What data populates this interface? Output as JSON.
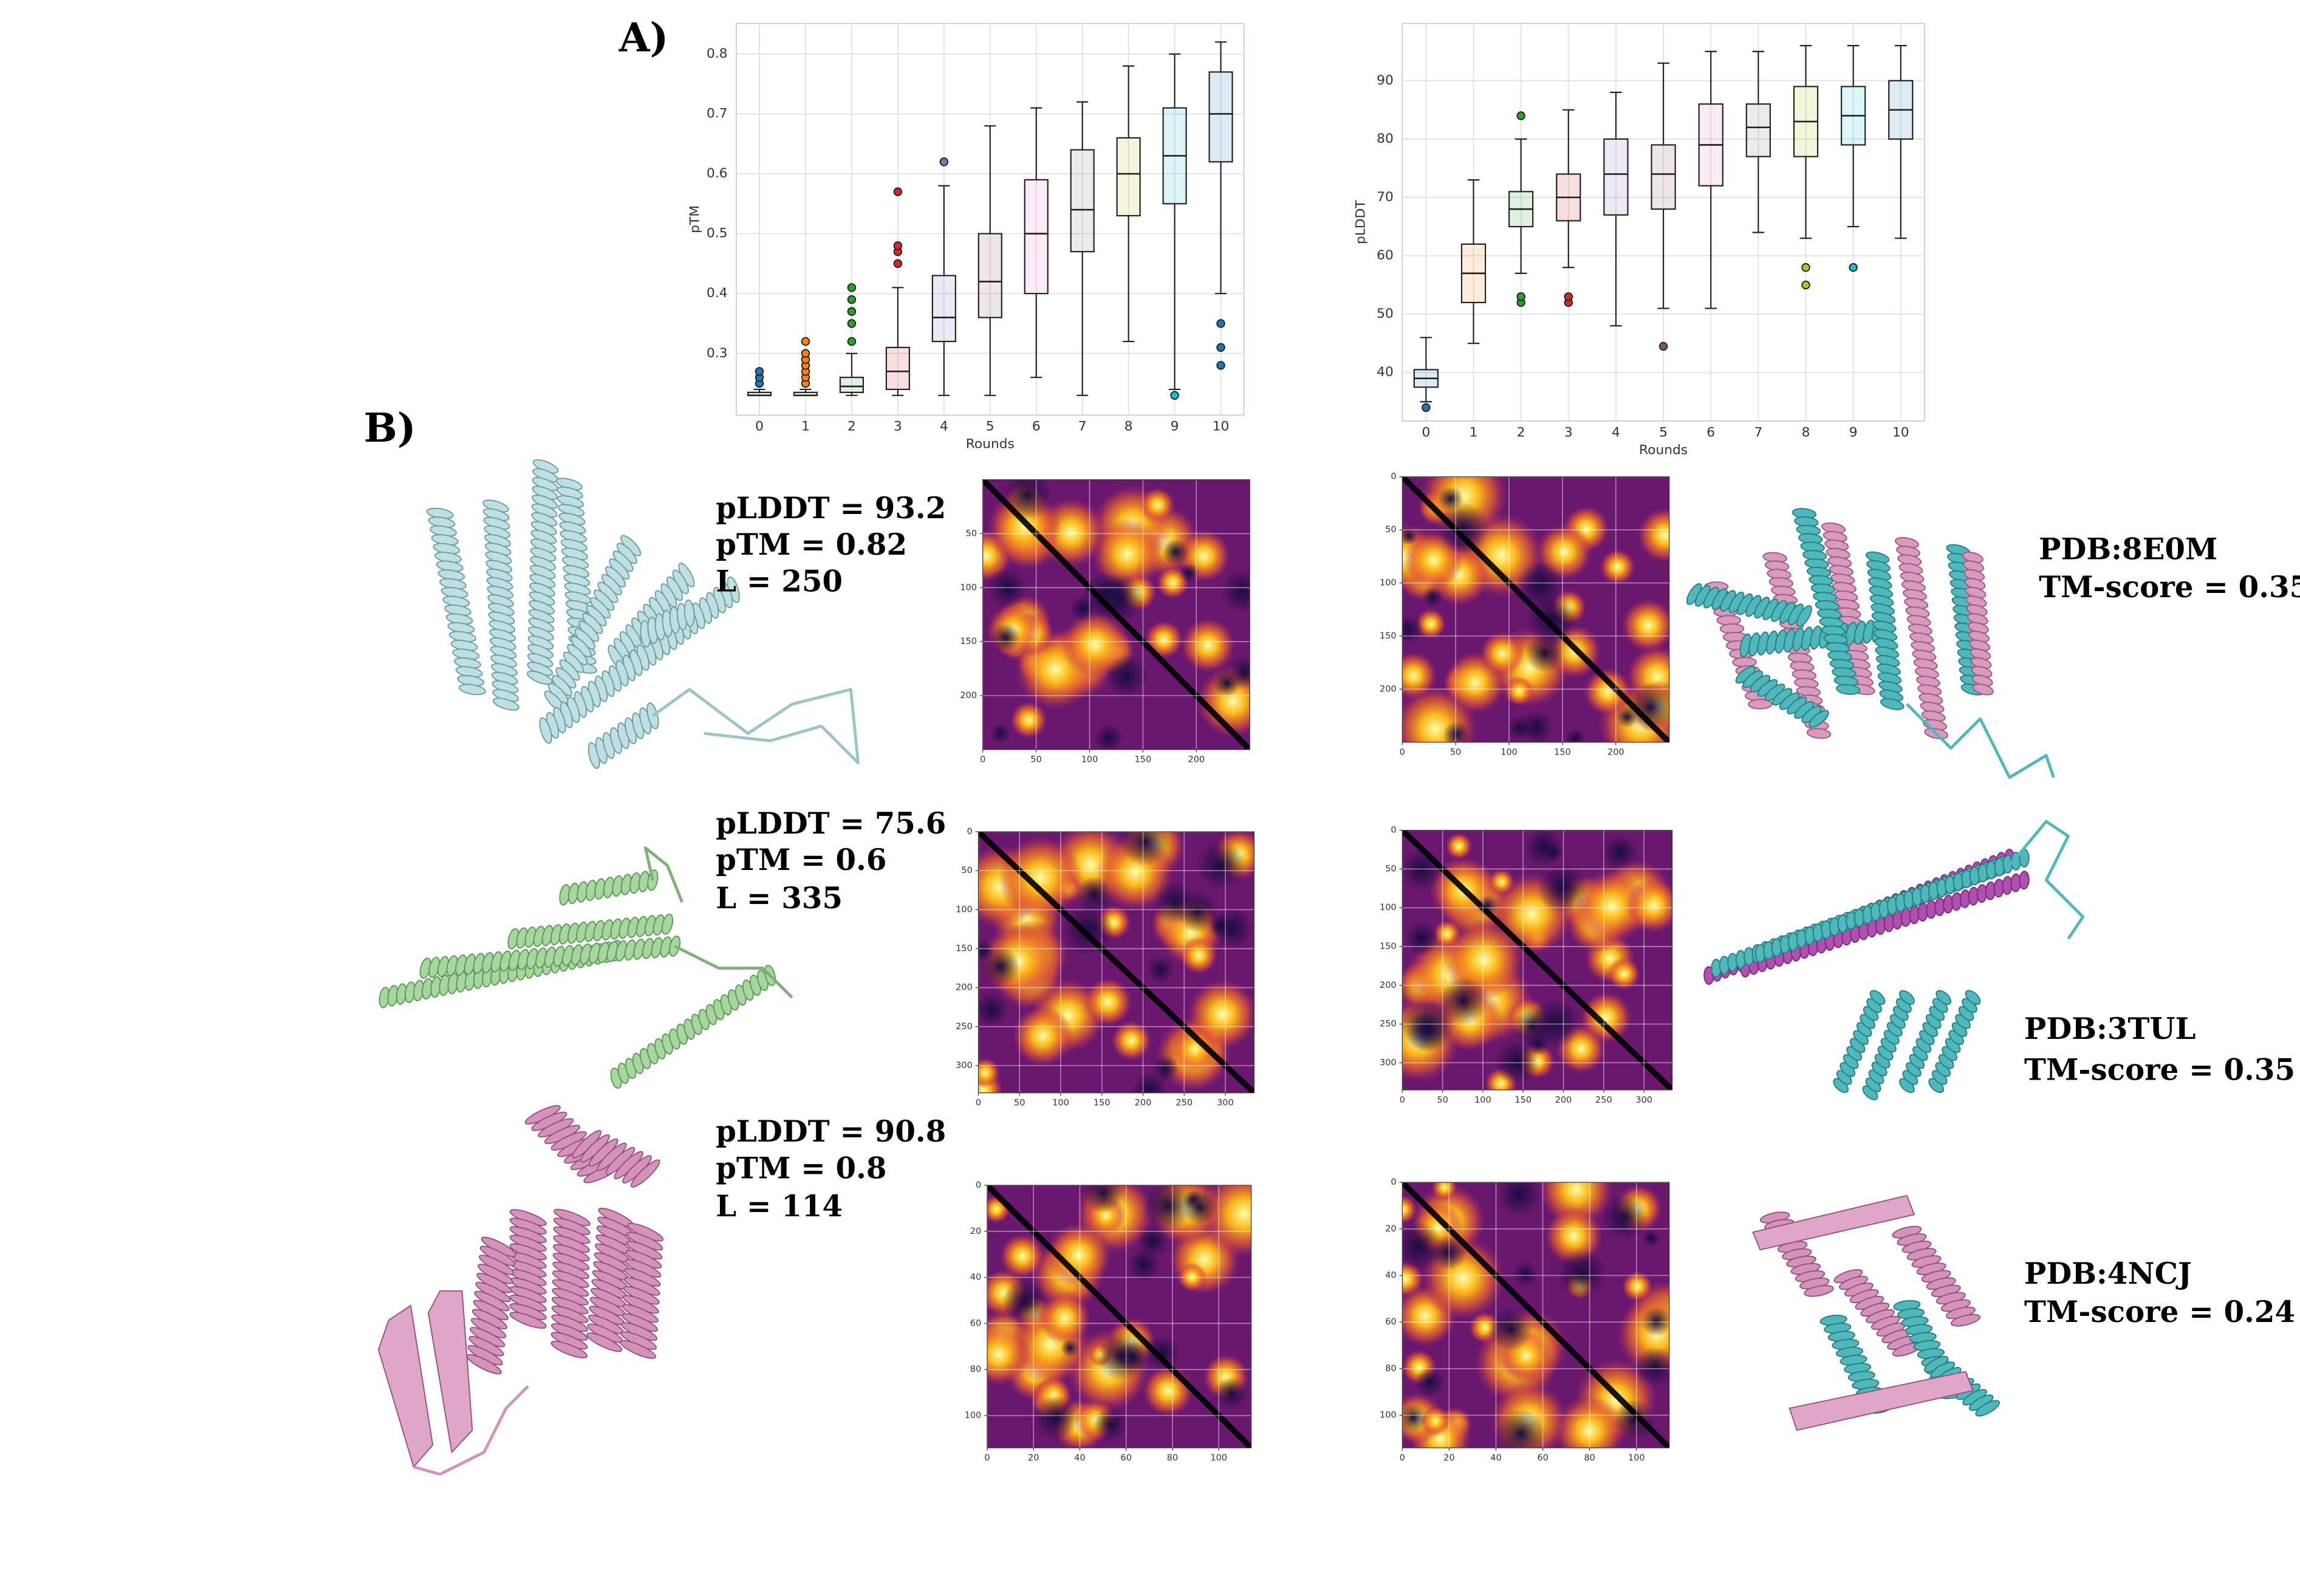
{
  "panel_labels": [
    "A)",
    "B)"
  ],
  "chart_data": [
    {
      "type": "box",
      "ylabel": "pTM",
      "xlabel": "Rounds",
      "categories": [
        "0",
        "1",
        "2",
        "3",
        "4",
        "5",
        "6",
        "7",
        "8",
        "9",
        "10"
      ],
      "colors": [
        "#1f77b4",
        "#ff7f0e",
        "#2ca02c",
        "#d62728",
        "#9467bd",
        "#8c564b",
        "#e377c2",
        "#7f7f7f",
        "#bcbd22",
        "#17becf",
        "#1f77b4"
      ],
      "boxes": [
        {
          "low": 0.23,
          "q1": 0.23,
          "median": 0.23,
          "q3": 0.235,
          "high": 0.24,
          "outliers": [
            0.25,
            0.26,
            0.27
          ]
        },
        {
          "low": 0.23,
          "q1": 0.23,
          "median": 0.23,
          "q3": 0.235,
          "high": 0.24,
          "outliers": [
            0.25,
            0.26,
            0.27,
            0.28,
            0.29,
            0.3,
            0.32
          ]
        },
        {
          "low": 0.23,
          "q1": 0.235,
          "median": 0.245,
          "q3": 0.26,
          "high": 0.3,
          "outliers": [
            0.32,
            0.35,
            0.37,
            0.39,
            0.41
          ]
        },
        {
          "low": 0.23,
          "q1": 0.24,
          "median": 0.27,
          "q3": 0.31,
          "high": 0.41,
          "outliers": [
            0.45,
            0.47,
            0.48,
            0.57
          ]
        },
        {
          "low": 0.23,
          "q1": 0.32,
          "median": 0.36,
          "q3": 0.43,
          "high": 0.58,
          "outliers": [
            0.62
          ]
        },
        {
          "low": 0.23,
          "q1": 0.36,
          "median": 0.42,
          "q3": 0.5,
          "high": 0.68,
          "outliers": []
        },
        {
          "low": 0.26,
          "q1": 0.4,
          "median": 0.5,
          "q3": 0.59,
          "high": 0.71,
          "outliers": []
        },
        {
          "low": 0.23,
          "q1": 0.47,
          "median": 0.54,
          "q3": 0.64,
          "high": 0.72,
          "outliers": []
        },
        {
          "low": 0.32,
          "q1": 0.53,
          "median": 0.6,
          "q3": 0.66,
          "high": 0.78,
          "outliers": []
        },
        {
          "low": 0.24,
          "q1": 0.55,
          "median": 0.63,
          "q3": 0.71,
          "high": 0.8,
          "outliers": [
            0.23
          ]
        },
        {
          "low": 0.4,
          "q1": 0.62,
          "median": 0.7,
          "q3": 0.77,
          "high": 0.82,
          "outliers": [
            0.28,
            0.31,
            0.35
          ]
        }
      ],
      "ylim": [
        0.197,
        0.851
      ],
      "yticks": [
        0.3,
        0.4,
        0.5,
        0.6,
        0.7,
        0.8
      ],
      "grid": true
    },
    {
      "type": "box",
      "ylabel": "pLDDT",
      "xlabel": "Rounds",
      "categories": [
        "0",
        "1",
        "2",
        "3",
        "4",
        "5",
        "6",
        "7",
        "8",
        "9",
        "10"
      ],
      "colors": [
        "#1f77b4",
        "#ff7f0e",
        "#2ca02c",
        "#d62728",
        "#9467bd",
        "#8c564b",
        "#e377c2",
        "#7f7f7f",
        "#bcbd22",
        "#17becf",
        "#1f77b4"
      ],
      "boxes": [
        {
          "low": 35,
          "q1": 37.5,
          "median": 39,
          "q3": 40.5,
          "high": 46,
          "outliers": [
            34
          ]
        },
        {
          "low": 45,
          "q1": 52,
          "median": 57,
          "q3": 62,
          "high": 73,
          "outliers": []
        },
        {
          "low": 57,
          "q1": 65,
          "median": 68,
          "q3": 71,
          "high": 80,
          "outliers": [
            52,
            53,
            84
          ]
        },
        {
          "low": 58,
          "q1": 66,
          "median": 70,
          "q3": 74,
          "high": 85,
          "outliers": [
            52,
            53
          ]
        },
        {
          "low": 48,
          "q1": 67,
          "median": 74,
          "q3": 80,
          "high": 88,
          "outliers": []
        },
        {
          "low": 51,
          "q1": 68,
          "median": 74,
          "q3": 79,
          "high": 93,
          "outliers": [
            44.5
          ]
        },
        {
          "low": 51,
          "q1": 72,
          "median": 79,
          "q3": 86,
          "high": 95,
          "outliers": []
        },
        {
          "low": 64,
          "q1": 77,
          "median": 82,
          "q3": 86,
          "high": 95,
          "outliers": []
        },
        {
          "low": 63,
          "q1": 77,
          "median": 83,
          "q3": 89,
          "high": 96,
          "outliers": [
            55,
            58
          ]
        },
        {
          "low": 65,
          "q1": 79,
          "median": 84,
          "q3": 89,
          "high": 96,
          "outliers": [
            58
          ]
        },
        {
          "low": 63,
          "q1": 80,
          "median": 85,
          "q3": 90,
          "high": 96,
          "outliers": []
        }
      ],
      "ylim": [
        31.7,
        99.8
      ],
      "yticks": [
        40,
        50,
        60,
        70,
        80,
        90
      ],
      "grid": true
    },
    {
      "type": "heatmap",
      "xlim": [
        0,
        250
      ],
      "ylim": [
        250,
        0
      ],
      "xticks": [
        0,
        50,
        100,
        150,
        200
      ],
      "yticks": [
        50,
        100,
        150,
        200
      ]
    },
    {
      "type": "heatmap",
      "xlim": [
        0,
        250
      ],
      "ylim": [
        250,
        0
      ],
      "xticks": [
        0,
        50,
        100,
        150,
        200
      ],
      "yticks": [
        0,
        50,
        100,
        150,
        200
      ]
    },
    {
      "type": "heatmap",
      "xlim": [
        0,
        335
      ],
      "ylim": [
        335,
        0
      ],
      "xticks": [
        0,
        50,
        100,
        150,
        200,
        250,
        300
      ],
      "yticks": [
        0,
        50,
        100,
        150,
        200,
        250,
        300
      ]
    },
    {
      "type": "heatmap",
      "xlim": [
        0,
        335
      ],
      "ylim": [
        335,
        0
      ],
      "xticks": [
        0,
        50,
        100,
        150,
        200,
        250,
        300
      ],
      "yticks": [
        0,
        50,
        100,
        150,
        200,
        250,
        300
      ]
    },
    {
      "type": "heatmap",
      "xlim": [
        0,
        114
      ],
      "ylim": [
        114,
        0
      ],
      "xticks": [
        0,
        20,
        40,
        60,
        80,
        100
      ],
      "yticks": [
        0,
        20,
        40,
        60,
        80,
        100
      ]
    },
    {
      "type": "heatmap",
      "xlim": [
        0,
        114
      ],
      "ylim": [
        114,
        0
      ],
      "xticks": [
        0,
        20,
        40,
        60,
        80,
        100
      ],
      "yticks": [
        0,
        20,
        40,
        60,
        80,
        100
      ]
    }
  ],
  "models": [
    {
      "lines": [
        "pLDDT = 93.2",
        "pTM = 0.82",
        "L = 250"
      ]
    },
    {
      "lines": [
        "pLDDT = 75.6",
        "pTM = 0.6",
        "L = 335"
      ]
    },
    {
      "lines": [
        "pLDDT = 90.8",
        "pTM = 0.8",
        "L = 114"
      ]
    }
  ],
  "matches": [
    {
      "pdb": "PDB:8E0M",
      "score": "TM-score = 0.35"
    },
    {
      "pdb": "PDB:3TUL",
      "score": "TM-score = 0.35"
    },
    {
      "pdb": "PDB:4NCJ",
      "score": "TM-score = 0.24"
    }
  ]
}
